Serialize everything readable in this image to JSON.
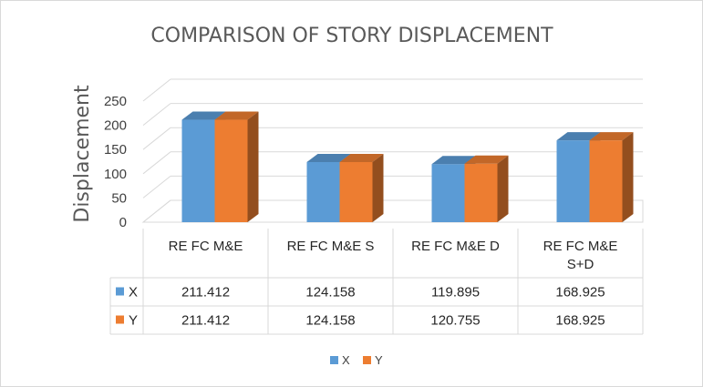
{
  "chart_data": {
    "type": "bar",
    "title": "COMPARISON OF STORY DISPLACEMENT",
    "ylabel": "Displacement",
    "xlabel": "",
    "ylim": [
      0,
      250
    ],
    "yticks": [
      "0",
      "50",
      "100",
      "150",
      "200",
      "250"
    ],
    "categories": [
      [
        "RE FC M&E"
      ],
      [
        "RE FC M&E S"
      ],
      [
        "RE FC M&E D"
      ],
      [
        "RE FC M&E",
        "S+D"
      ]
    ],
    "series": [
      {
        "name": "X",
        "color": "#5b9bd5",
        "values": [
          211.412,
          124.158,
          119.895,
          168.925
        ],
        "labels": [
          "211.412",
          "124.158",
          "119.895",
          "168.925"
        ]
      },
      {
        "name": "Y",
        "color": "#ed7d31",
        "values": [
          211.412,
          124.158,
          120.755,
          168.925
        ],
        "labels": [
          "211.412",
          "124.158",
          "120.755",
          "168.925"
        ]
      }
    ],
    "grid": true,
    "legend": "bottom",
    "style": "3d-column-with-data-table"
  }
}
